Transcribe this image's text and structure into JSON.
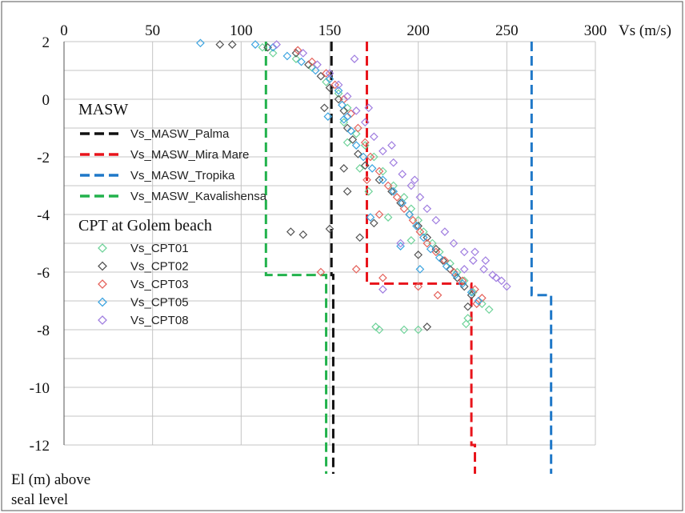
{
  "chart_data": {
    "type": "scatter",
    "x_axis": {
      "label": "Vs (m/s)",
      "range": [
        0,
        300
      ],
      "ticks": [
        0,
        50,
        100,
        150,
        200,
        250,
        300
      ],
      "position": "top"
    },
    "y_axis": {
      "label_line1": "El (m) above",
      "label_line2": "seal level",
      "range": [
        -12,
        2
      ],
      "ticks": [
        2,
        0,
        -2,
        -4,
        -6,
        -8,
        -10,
        -12
      ]
    },
    "grid": true,
    "legend": {
      "placement": "left",
      "group1_title": "MASW",
      "group2_title": "CPT at Golem beach"
    },
    "masw_series": [
      {
        "name": "Vs_MASW_Palma",
        "color": "#111111",
        "points": [
          [
            151,
            2
          ],
          [
            151,
            -6.1
          ],
          [
            152,
            -6.1
          ],
          [
            152,
            -12.9
          ]
        ]
      },
      {
        "name": "Vs_MASW_Mira Mare",
        "color": "#e8141b",
        "points": [
          [
            171,
            2
          ],
          [
            171,
            -6.4
          ],
          [
            230,
            -6.4
          ],
          [
            230,
            -12
          ],
          [
            232,
            -12
          ],
          [
            232,
            -12.9
          ]
        ]
      },
      {
        "name": "Vs_MASW_Tropika",
        "color": "#1f78c8",
        "points": [
          [
            264,
            2
          ],
          [
            264,
            -6.8
          ],
          [
            275,
            -6.8
          ],
          [
            275,
            -12.9
          ]
        ]
      },
      {
        "name": "Vs_MASW_Kavalishensa",
        "color": "#22b24c",
        "points": [
          [
            114,
            2
          ],
          [
            114,
            -6.1
          ],
          [
            148,
            -6.1
          ],
          [
            148,
            -12.9
          ]
        ]
      }
    ],
    "cpt_series": [
      {
        "name": "Vs_CPT01",
        "color": "#6fd39a",
        "points": [
          [
            112,
            1.8
          ],
          [
            118,
            1.6
          ],
          [
            131,
            1.4
          ],
          [
            140,
            1.1
          ],
          [
            148,
            0.6
          ],
          [
            155,
            0.2
          ],
          [
            160,
            -0.3
          ],
          [
            158,
            -0.8
          ],
          [
            165,
            -1.2
          ],
          [
            170,
            -1.6
          ],
          [
            175,
            -2
          ],
          [
            180,
            -2.5
          ],
          [
            186,
            -3
          ],
          [
            192,
            -3.4
          ],
          [
            196,
            -3.8
          ],
          [
            200,
            -4.2
          ],
          [
            203,
            -4.6
          ],
          [
            208,
            -5
          ],
          [
            212,
            -5.3
          ],
          [
            218,
            -5.7
          ],
          [
            222,
            -6
          ],
          [
            226,
            -6.3
          ],
          [
            231,
            -6.7
          ],
          [
            236,
            -7.1
          ],
          [
            240,
            -7.3
          ],
          [
            228,
            -7.6
          ],
          [
            227,
            -7.8
          ],
          [
            200,
            -8
          ],
          [
            192,
            -8
          ],
          [
            178,
            -8
          ],
          [
            176,
            -7.9
          ],
          [
            167,
            -2.4
          ],
          [
            172,
            -3.2
          ],
          [
            160,
            -1.5
          ],
          [
            183,
            -4.1
          ],
          [
            196,
            -4.9
          ]
        ]
      },
      {
        "name": "Vs_CPT02",
        "color": "#555555",
        "points": [
          [
            88,
            1.9
          ],
          [
            95,
            1.9
          ],
          [
            115,
            1.8
          ],
          [
            131,
            1.6
          ],
          [
            138,
            1.2
          ],
          [
            145,
            0.8
          ],
          [
            150,
            0.4
          ],
          [
            155,
            0
          ],
          [
            158,
            -0.4
          ],
          [
            160,
            -1
          ],
          [
            163,
            -1.4
          ],
          [
            166,
            -1.9
          ],
          [
            170,
            -2.3
          ],
          [
            178,
            -2.8
          ],
          [
            185,
            -3.2
          ],
          [
            190,
            -3.6
          ],
          [
            195,
            -4
          ],
          [
            200,
            -4.4
          ],
          [
            205,
            -4.8
          ],
          [
            210,
            -5.2
          ],
          [
            214,
            -5.6
          ],
          [
            218,
            -5.9
          ],
          [
            222,
            -6.2
          ],
          [
            226,
            -6.5
          ],
          [
            230,
            -6.8
          ],
          [
            228,
            -7.2
          ],
          [
            205,
            -7.9
          ],
          [
            175,
            -4.3
          ],
          [
            167,
            -4.8
          ],
          [
            150,
            -4.5
          ],
          [
            135,
            -4.7
          ],
          [
            128,
            -4.6
          ],
          [
            160,
            -3.2
          ],
          [
            158,
            -2.4
          ],
          [
            147,
            -0.3
          ],
          [
            200,
            -5.4
          ]
        ]
      },
      {
        "name": "Vs_CPT03",
        "color": "#e5625b",
        "points": [
          [
            132,
            1.7
          ],
          [
            140,
            1.3
          ],
          [
            148,
            0.9
          ],
          [
            153,
            0.5
          ],
          [
            158,
            0
          ],
          [
            162,
            -0.5
          ],
          [
            166,
            -1
          ],
          [
            170,
            -1.5
          ],
          [
            173,
            -2
          ],
          [
            178,
            -2.5
          ],
          [
            183,
            -3
          ],
          [
            188,
            -3.4
          ],
          [
            192,
            -3.8
          ],
          [
            197,
            -4.2
          ],
          [
            201,
            -4.6
          ],
          [
            205,
            -5
          ],
          [
            210,
            -5.3
          ],
          [
            215,
            -5.6
          ],
          [
            220,
            -6
          ],
          [
            225,
            -6.3
          ],
          [
            232,
            -6.6
          ],
          [
            236,
            -6.9
          ],
          [
            233,
            -7.1
          ],
          [
            145,
            -6
          ],
          [
            165,
            -5.9
          ],
          [
            180,
            -6.2
          ],
          [
            200,
            -6.5
          ],
          [
            211,
            -6.8
          ],
          [
            178,
            -4
          ],
          [
            171,
            -2.8
          ]
        ]
      },
      {
        "name": "Vs_CPT05",
        "color": "#3da4e0",
        "points": [
          [
            77,
            1.95
          ],
          [
            108,
            1.9
          ],
          [
            118,
            1.8
          ],
          [
            126,
            1.5
          ],
          [
            134,
            1.3
          ],
          [
            142,
            1
          ],
          [
            150,
            0.7
          ],
          [
            155,
            0.3
          ],
          [
            157,
            -0.2
          ],
          [
            160,
            -0.6
          ],
          [
            162,
            -1.1
          ],
          [
            165,
            -1.6
          ],
          [
            169,
            -2
          ],
          [
            174,
            -2.4
          ],
          [
            180,
            -2.8
          ],
          [
            186,
            -3.2
          ],
          [
            191,
            -3.6
          ],
          [
            195,
            -4
          ],
          [
            199,
            -4.4
          ],
          [
            203,
            -4.8
          ],
          [
            207,
            -5.2
          ],
          [
            212,
            -5.5
          ],
          [
            216,
            -5.8
          ],
          [
            221,
            -6.1
          ],
          [
            225,
            -6.4
          ],
          [
            230,
            -6.7
          ],
          [
            234,
            -7
          ],
          [
            158,
            -0.7
          ],
          [
            149,
            -0.6
          ],
          [
            190,
            -5.1
          ],
          [
            201,
            -5.9
          ],
          [
            173,
            -4.1
          ]
        ]
      },
      {
        "name": "Vs_CPT08",
        "color": "#a07ee0",
        "points": [
          [
            120,
            1.9
          ],
          [
            135,
            1.6
          ],
          [
            143,
            1.2
          ],
          [
            150,
            0.9
          ],
          [
            155,
            0.5
          ],
          [
            160,
            0.1
          ],
          [
            165,
            -0.4
          ],
          [
            170,
            -0.8
          ],
          [
            175,
            -1.3
          ],
          [
            180,
            -1.8
          ],
          [
            186,
            -2.2
          ],
          [
            191,
            -2.6
          ],
          [
            196,
            -3
          ],
          [
            201,
            -3.4
          ],
          [
            205,
            -3.8
          ],
          [
            210,
            -4.2
          ],
          [
            215,
            -4.6
          ],
          [
            220,
            -5
          ],
          [
            226,
            -5.3
          ],
          [
            231,
            -5.6
          ],
          [
            237,
            -5.9
          ],
          [
            242,
            -6.1
          ],
          [
            247,
            -6.3
          ],
          [
            250,
            -6.5
          ],
          [
            244,
            -6.2
          ],
          [
            238,
            -5.6
          ],
          [
            232,
            -5.3
          ],
          [
            226,
            -5.9
          ],
          [
            198,
            -2.8
          ],
          [
            185,
            -1.6
          ],
          [
            172,
            -0.3
          ],
          [
            164,
            1.4
          ],
          [
            180,
            -6.6
          ],
          [
            190,
            -5
          ]
        ]
      }
    ]
  }
}
